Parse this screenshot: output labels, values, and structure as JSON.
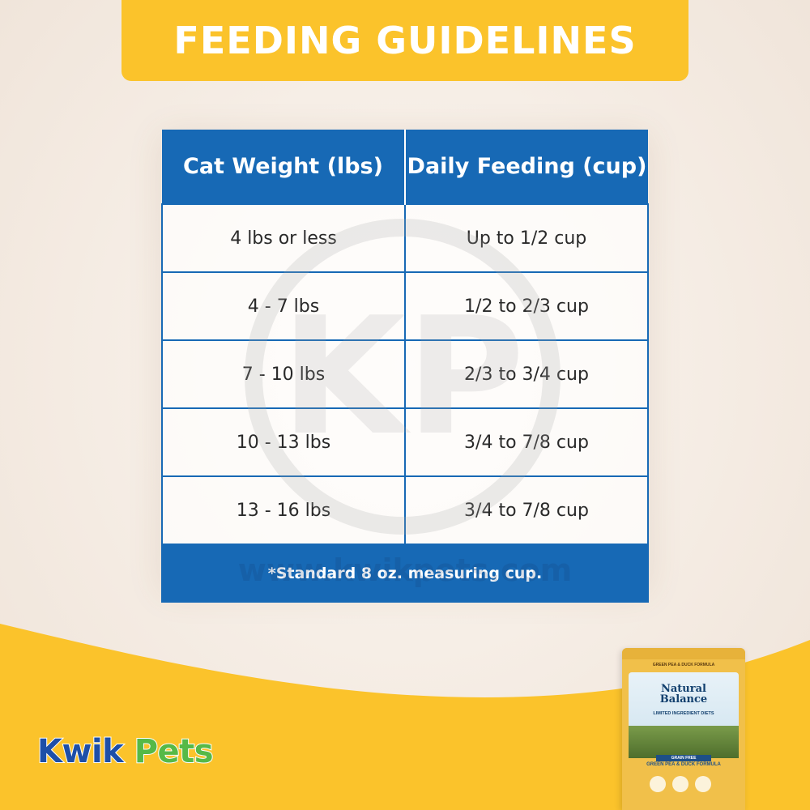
{
  "banner": {
    "title": "FEEDING GUIDELINES"
  },
  "table": {
    "headers": [
      "Cat Weight (lbs)",
      "Daily Feeding (cup)"
    ],
    "rows": [
      [
        "4 lbs or less",
        "Up to 1/2 cup"
      ],
      [
        "4 - 7 lbs",
        "1/2 to 2/3 cup"
      ],
      [
        "7 - 10 lbs",
        "2/3 to 3/4 cup"
      ],
      [
        "10 - 13 lbs",
        "3/4 to 7/8 cup"
      ],
      [
        "13 - 16 lbs",
        "3/4 to 7/8 cup"
      ]
    ],
    "footnote": "*Standard 8 oz. measuring cup."
  },
  "watermark": {
    "letters": "KP",
    "url": "www.kwikpets.com"
  },
  "logo": {
    "kwik": "Kwik",
    "pets": "Pets"
  },
  "product": {
    "subtitle": "GREEN PEA & DUCK FORMULA",
    "brand_line1": "Natural",
    "brand_line2": "Balance",
    "line": "LIMITED INGREDIENT DIETS",
    "badge": "GRAIN FREE",
    "formula": "GREEN PEA & DUCK FORMULA"
  },
  "colors": {
    "banner": "#fbc32b",
    "table_header": "#1769b5",
    "background": "#f6eee6",
    "wave": "#fbc32b",
    "logo_blue": "#1d4fa8",
    "logo_green": "#56b947"
  }
}
